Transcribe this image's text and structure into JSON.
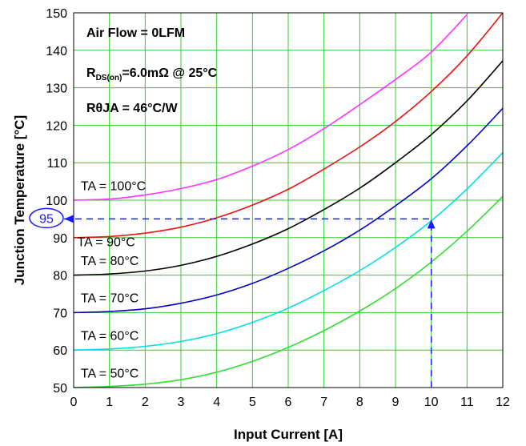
{
  "chart_data": {
    "type": "line",
    "xlabel": "Input Current [A]",
    "ylabel": "Junction Temperature [°C]",
    "xlim": [
      0,
      12
    ],
    "ylim": [
      50,
      150
    ],
    "xticks": [
      "0",
      "1",
      "2",
      "3",
      "4",
      "5",
      "6",
      "7",
      "8",
      "9",
      "10",
      "11",
      "12"
    ],
    "yticks": [
      "50",
      "60",
      "70",
      "80",
      "90",
      "100",
      "110",
      "120",
      "130",
      "140",
      "150"
    ],
    "grid": true,
    "grid_color": "#33cc33",
    "x": [
      0,
      1,
      2,
      3,
      4,
      5,
      6,
      7,
      8,
      9,
      10,
      11,
      12
    ],
    "series": [
      {
        "name": "TA = 100°C",
        "color": "#ff33ff",
        "values": [
          100,
          100.3,
          101.4,
          103.1,
          105.5,
          109.1,
          113.5,
          119.1,
          125.5,
          132.2,
          139.5,
          149.5,
          null
        ]
      },
      {
        "name": "TA = 90°C",
        "color": "#ee1111",
        "values": [
          90,
          90.3,
          91.2,
          92.8,
          95.3,
          98.7,
          102.9,
          108.3,
          114.2,
          121.0,
          129.0,
          138.5,
          150
        ]
      },
      {
        "name": "TA = 80°C",
        "color": "#000000",
        "values": [
          80,
          80.3,
          81.1,
          82.6,
          85.0,
          88.3,
          92.4,
          97.5,
          103.2,
          110.0,
          117.5,
          126.5,
          137.2
        ]
      },
      {
        "name": "TA = 70°C",
        "color": "#0000cc",
        "values": [
          70,
          70.3,
          71.0,
          72.5,
          74.7,
          77.8,
          81.8,
          86.5,
          92.0,
          98.5,
          105.7,
          114.5,
          124.5
        ]
      },
      {
        "name": "TA = 60°C",
        "color": "#00e0e0",
        "values": [
          60,
          60.3,
          61.0,
          62.3,
          64.4,
          67.4,
          71.2,
          75.9,
          81.2,
          87.4,
          94.5,
          103.0,
          112.7
        ]
      },
      {
        "name": "TA = 50°C",
        "color": "#33dd33",
        "values": [
          50,
          50.3,
          50.9,
          52.1,
          54.1,
          57.0,
          60.7,
          65.2,
          70.4,
          76.4,
          83.5,
          91.7,
          101.0
        ]
      }
    ],
    "series_labels": [
      {
        "text": "TA = 100°C",
        "x": 0.2,
        "y": 104
      },
      {
        "text": "TA = 90°C",
        "x": 0.1,
        "y": 89
      },
      {
        "text": "TA = 80°C",
        "x": 0.2,
        "y": 84
      },
      {
        "text": "TA = 70°C",
        "x": 0.2,
        "y": 74
      },
      {
        "text": "TA = 60°C",
        "x": 0.2,
        "y": 64
      },
      {
        "text": "TA = 50°C",
        "x": 0.2,
        "y": 54
      }
    ],
    "annotations": {
      "air_flow": "Air Flow = 0LFM",
      "rds_main": "R",
      "rds_sub": "DS(on)",
      "rds_rest": "=6.0mΩ @ 25°C",
      "rtheta": "RθJA = 46°C/W"
    },
    "callout": {
      "label": "95",
      "x": 10,
      "y": 95,
      "color": "#1a1aff"
    }
  }
}
